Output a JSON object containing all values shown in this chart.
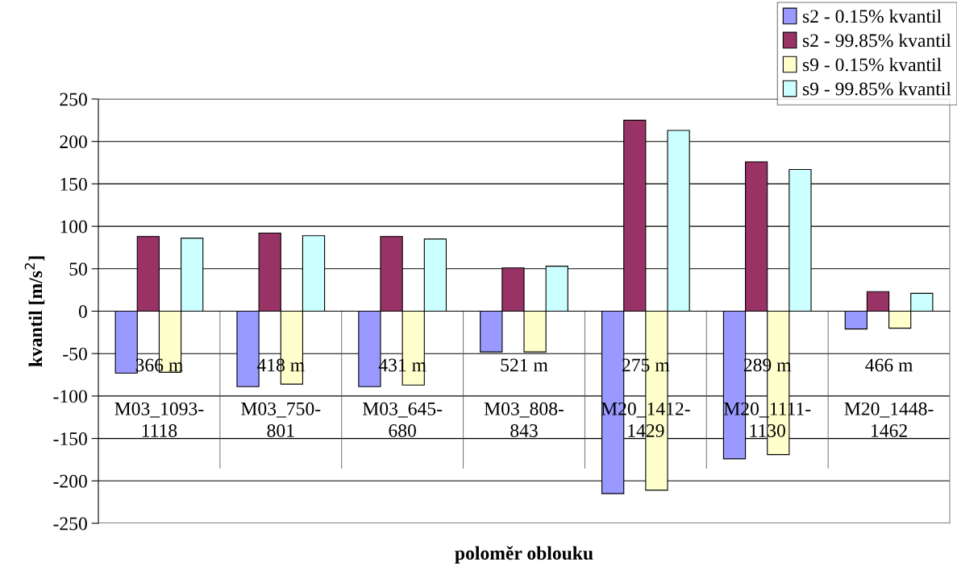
{
  "chart_data": {
    "type": "bar",
    "xlabel": "poloměr oblouku",
    "ylabel": "kvantil [m/s$^{2}$]",
    "categories": [
      "366 m\n\nM03_1093-\n1118",
      "418 m\n\nM03_750-\n801",
      "431 m\n\nM03_645-\n680",
      "521 m\n\nM03_808-\n843",
      "275 m\n\nM20_1412-\n1429",
      "289 m\n\nM20_1111-\n1130",
      "466 m\n\nM20_1448-\n1462"
    ],
    "series": [
      {
        "name": "s2 - 0.15% kvantil",
        "color": "#9999ff",
        "values": [
          -73,
          -89,
          -89,
          -48,
          -215,
          -174,
          -21
        ]
      },
      {
        "name": "s2 - 99.85% kvantil",
        "color": "#993366",
        "values": [
          88,
          92,
          88,
          51,
          225,
          176,
          23
        ]
      },
      {
        "name": "s9 - 0.15% kvantil",
        "color": "#ffffcc",
        "values": [
          -72,
          -86,
          -87,
          -48,
          -211,
          -169,
          -20
        ]
      },
      {
        "name": "s9 - 99.85% kvantil",
        "color": "#ccffff",
        "values": [
          86,
          89,
          85,
          53,
          213,
          167,
          21
        ]
      }
    ],
    "ylim": [
      -250,
      250
    ],
    "yticks": [
      -250,
      -200,
      -150,
      -100,
      -50,
      0,
      50,
      100,
      150,
      200,
      250
    ],
    "grid": "y",
    "legend": "top right"
  }
}
